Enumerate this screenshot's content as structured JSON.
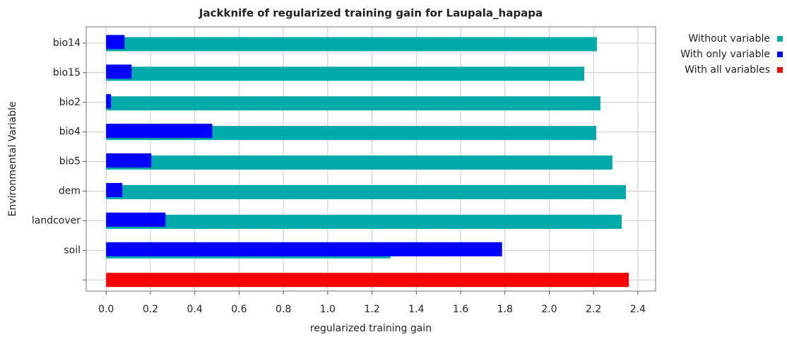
{
  "chart_data": {
    "type": "bar",
    "orientation": "horizontal",
    "title": "Jackknife of regularized training gain for Laupala_hapapa",
    "x_label": "regularized training gain",
    "y_label": "Environmental Variable",
    "categories": [
      "bio14",
      "bio15",
      "bio2",
      "bio4",
      "bio5",
      "dem",
      "landcover",
      "soil",
      null
    ],
    "series": [
      {
        "name": "Without variable",
        "color": "#00aaaa",
        "values": [
          2.215,
          2.158,
          2.231,
          2.212,
          2.285,
          2.346,
          2.327,
          1.283,
          null
        ]
      },
      {
        "name": "With only variable",
        "color": "#0000ff",
        "values": [
          0.083,
          0.115,
          0.022,
          0.479,
          0.204,
          0.073,
          0.268,
          1.787,
          null
        ]
      },
      {
        "name": "With all variables",
        "color": "#ff0000",
        "values": [
          null,
          null,
          null,
          null,
          null,
          null,
          null,
          null,
          2.359
        ]
      }
    ],
    "xlim": [
      -0.09,
      2.48
    ],
    "xticks": [
      {
        "value": 0,
        "label": "0.0"
      },
      0.2,
      0.4,
      0.6,
      0.8,
      {
        "value": 1,
        "label": "1.0"
      },
      1.2,
      1.4,
      1.6,
      1.8,
      {
        "value": 2,
        "label": "2.0"
      },
      2.2,
      2.4
    ],
    "grid": true,
    "legend": "top-right"
  }
}
